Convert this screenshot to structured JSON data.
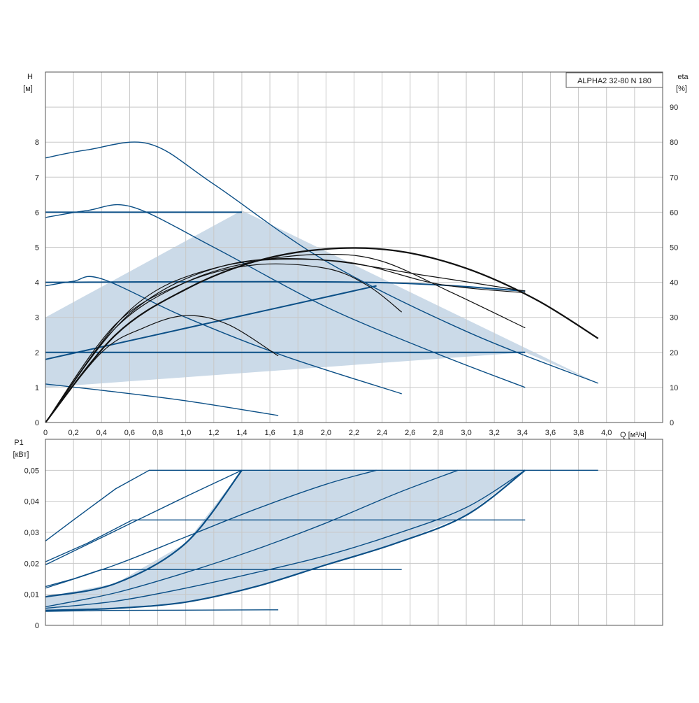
{
  "model_label": "ALPHA2 32-80 N 180",
  "colors": {
    "curve": "#0b4f86",
    "area_fill": "#b9cde0",
    "efficiency": "#111111",
    "grid": "#c8c8c8"
  },
  "chart_data": [
    {
      "type": "line",
      "panel": "head",
      "title": "",
      "xlabel": "Q [м³/ч]",
      "ylabel": "H [м]",
      "y2label": "eta [%]",
      "xlim": [
        0,
        4.4
      ],
      "ylim": [
        0,
        10
      ],
      "y2lim": [
        0,
        100
      ],
      "grid": true,
      "x_ticks": [
        "0",
        "0,2",
        "0,4",
        "0,6",
        "0,8",
        "1,0",
        "1,2",
        "1,4",
        "1,6",
        "1,8",
        "2,0",
        "2,2",
        "2,4",
        "2,6",
        "2,8",
        "3,0",
        "3,2",
        "3,4",
        "3,6",
        "3,8",
        "4,0"
      ],
      "y_ticks": [
        "0",
        "1",
        "2",
        "3",
        "4",
        "5",
        "6",
        "7",
        "8"
      ],
      "y2_ticks": [
        "0",
        "10",
        "20",
        "30",
        "40",
        "50",
        "60",
        "70",
        "80",
        "90"
      ],
      "operating_area": [
        [
          0,
          1
        ],
        [
          0,
          3
        ],
        [
          1.4,
          6.05
        ],
        [
          3.94,
          1.12
        ],
        [
          3.42,
          2.0
        ],
        [
          0,
          1
        ]
      ],
      "series": [
        {
          "role": "pump",
          "points": [
            [
              0,
              7.55
            ],
            [
              0.3,
              7.78
            ],
            [
              0.74,
              7.95
            ],
            [
              1.2,
              6.8
            ],
            [
              2.0,
              4.6
            ],
            [
              3.0,
              2.6
            ],
            [
              3.94,
              1.12
            ]
          ]
        },
        {
          "role": "pump",
          "points": [
            [
              0,
              5.85
            ],
            [
              0.3,
              6.05
            ],
            [
              0.62,
              6.15
            ],
            [
              1.2,
              5.0
            ],
            [
              2.0,
              3.3
            ],
            [
              2.8,
              1.95
            ],
            [
              3.42,
              1.0
            ]
          ]
        },
        {
          "role": "pump",
          "points": [
            [
              0,
              3.9
            ],
            [
              0.2,
              4.03
            ],
            [
              0.4,
              4.1
            ],
            [
              1.0,
              3.0
            ],
            [
              1.7,
              1.9
            ],
            [
              2.54,
              0.82
            ]
          ]
        },
        {
          "role": "pump",
          "points": [
            [
              0,
              1.1
            ],
            [
              0.4,
              0.92
            ],
            [
              1.0,
              0.62
            ],
            [
              1.66,
              0.2
            ]
          ]
        },
        {
          "role": "pump",
          "points": [
            [
              0,
              6.0
            ],
            [
              1.4,
              6.0
            ]
          ]
        },
        {
          "role": "pump",
          "points": [
            [
              0,
              4.0
            ],
            [
              2.3,
              4.0
            ],
            [
              3.42,
              3.75
            ]
          ]
        },
        {
          "role": "pump",
          "points": [
            [
              0,
              2.0
            ],
            [
              3.42,
              2.0
            ]
          ]
        },
        {
          "role": "pump",
          "points": [
            [
              0,
              1.8
            ],
            [
              2.36,
              3.9
            ]
          ]
        },
        {
          "role": "efficiency",
          "points": [
            [
              0,
              0
            ],
            [
              0.5,
              25
            ],
            [
              1.0,
              38
            ],
            [
              1.5,
              46
            ],
            [
              2.0,
              49.5
            ],
            [
              2.5,
              49
            ],
            [
              3.0,
              44
            ],
            [
              3.5,
              35
            ],
            [
              3.94,
              24
            ]
          ]
        },
        {
          "role": "efficiency",
          "points": [
            [
              0,
              0
            ],
            [
              0.5,
              27
            ],
            [
              1.0,
              40
            ],
            [
              1.5,
              46
            ],
            [
              2.0,
              48
            ],
            [
              2.4,
              46
            ],
            [
              2.9,
              37
            ],
            [
              3.42,
              27
            ]
          ]
        },
        {
          "role": "efficiency",
          "points": [
            [
              0,
              0
            ],
            [
              0.5,
              28
            ],
            [
              1.0,
              40
            ],
            [
              1.5,
              45
            ],
            [
              2.0,
              44
            ],
            [
              2.3,
              39
            ],
            [
              2.54,
              31.5
            ]
          ]
        },
        {
          "role": "efficiency",
          "points": [
            [
              0,
              0
            ],
            [
              0.4,
              20
            ],
            [
              0.7,
              27
            ],
            [
              1.0,
              30.5
            ],
            [
              1.3,
              28
            ],
            [
              1.66,
              19
            ]
          ]
        },
        {
          "role": "efficiency",
          "points": [
            [
              0,
              0
            ],
            [
              0.6,
              32
            ],
            [
              1.2,
              44
            ],
            [
              1.9,
              46.5
            ],
            [
              2.7,
              42
            ],
            [
              3.42,
              37.5
            ]
          ]
        },
        {
          "role": "efficiency",
          "points": [
            [
              0,
              0
            ],
            [
              0.6,
              31
            ],
            [
              1.3,
              45
            ],
            [
              2.1,
              46
            ],
            [
              2.8,
              39.5
            ],
            [
              3.42,
              37
            ]
          ]
        }
      ]
    },
    {
      "type": "line",
      "panel": "power",
      "title": "",
      "xlabel": "",
      "ylabel": "P1 [кВт]",
      "xlim": [
        0,
        4.4
      ],
      "ylim": [
        0,
        0.06
      ],
      "grid": true,
      "y_ticks": [
        "0",
        "0,01",
        "0,02",
        "0,03",
        "0,04",
        "0,05"
      ],
      "operating_area": [
        [
          0,
          0.0048
        ],
        [
          0.5,
          0.0055
        ],
        [
          1.0,
          0.0075
        ],
        [
          1.5,
          0.0125
        ],
        [
          2.0,
          0.0195
        ],
        [
          2.5,
          0.0265
        ],
        [
          3.0,
          0.0355
        ],
        [
          3.42,
          0.05
        ],
        [
          1.4,
          0.05
        ],
        [
          1.0,
          0.0265
        ],
        [
          0.5,
          0.0135
        ],
        [
          0,
          0.0092
        ],
        [
          0,
          0.0048
        ]
      ],
      "series": [
        {
          "role": "power",
          "points": [
            [
              0,
              0.0272
            ],
            [
              0.2,
              0.034
            ],
            [
              0.5,
              0.044
            ],
            [
              0.74,
              0.05
            ],
            [
              3.94,
              0.05
            ]
          ]
        },
        {
          "role": "power",
          "points": [
            [
              0,
              0.0205
            ],
            [
              0.3,
              0.0265
            ],
            [
              0.62,
              0.034
            ],
            [
              3.42,
              0.034
            ]
          ]
        },
        {
          "role": "power",
          "points": [
            [
              0,
              0.0125
            ],
            [
              0.2,
              0.015
            ],
            [
              0.4,
              0.018
            ],
            [
              2.54,
              0.018
            ]
          ]
        },
        {
          "role": "power",
          "points": [
            [
              0,
              0.0045
            ],
            [
              0.4,
              0.0048
            ],
            [
              1.66,
              0.005
            ]
          ]
        },
        {
          "role": "power",
          "points": [
            [
              0,
              0.0092
            ],
            [
              0.5,
              0.0135
            ],
            [
              1.0,
              0.0265
            ],
            [
              1.4,
              0.05
            ]
          ]
        },
        {
          "role": "power",
          "points": [
            [
              0,
              0.0048
            ],
            [
              0.5,
              0.0055
            ],
            [
              1.0,
              0.0075
            ],
            [
              1.5,
              0.0125
            ],
            [
              2.0,
              0.0195
            ],
            [
              2.5,
              0.0265
            ],
            [
              3.0,
              0.0355
            ],
            [
              3.42,
              0.05
            ]
          ]
        },
        {
          "role": "power",
          "points": [
            [
              0,
              0.0195
            ],
            [
              0.5,
              0.0305
            ],
            [
              1.0,
              0.0415
            ],
            [
              1.4,
              0.05
            ]
          ]
        },
        {
          "role": "power",
          "points": [
            [
              0,
              0.012
            ],
            [
              0.5,
              0.0195
            ],
            [
              1.0,
              0.0285
            ],
            [
              1.5,
              0.0375
            ],
            [
              2.0,
              0.0455
            ],
            [
              2.36,
              0.05
            ]
          ]
        },
        {
          "role": "power",
          "points": [
            [
              0,
              0.006
            ],
            [
              0.5,
              0.0105
            ],
            [
              1.0,
              0.017
            ],
            [
              1.5,
              0.0245
            ],
            [
              2.0,
              0.033
            ],
            [
              2.5,
              0.0425
            ],
            [
              2.94,
              0.05
            ]
          ]
        },
        {
          "role": "power",
          "points": [
            [
              0,
              0.0055
            ],
            [
              0.5,
              0.0078
            ],
            [
              1.0,
              0.012
            ],
            [
              1.5,
              0.017
            ],
            [
              2.0,
              0.0225
            ],
            [
              2.5,
              0.0295
            ],
            [
              3.0,
              0.038
            ],
            [
              3.42,
              0.05
            ]
          ]
        }
      ]
    }
  ]
}
